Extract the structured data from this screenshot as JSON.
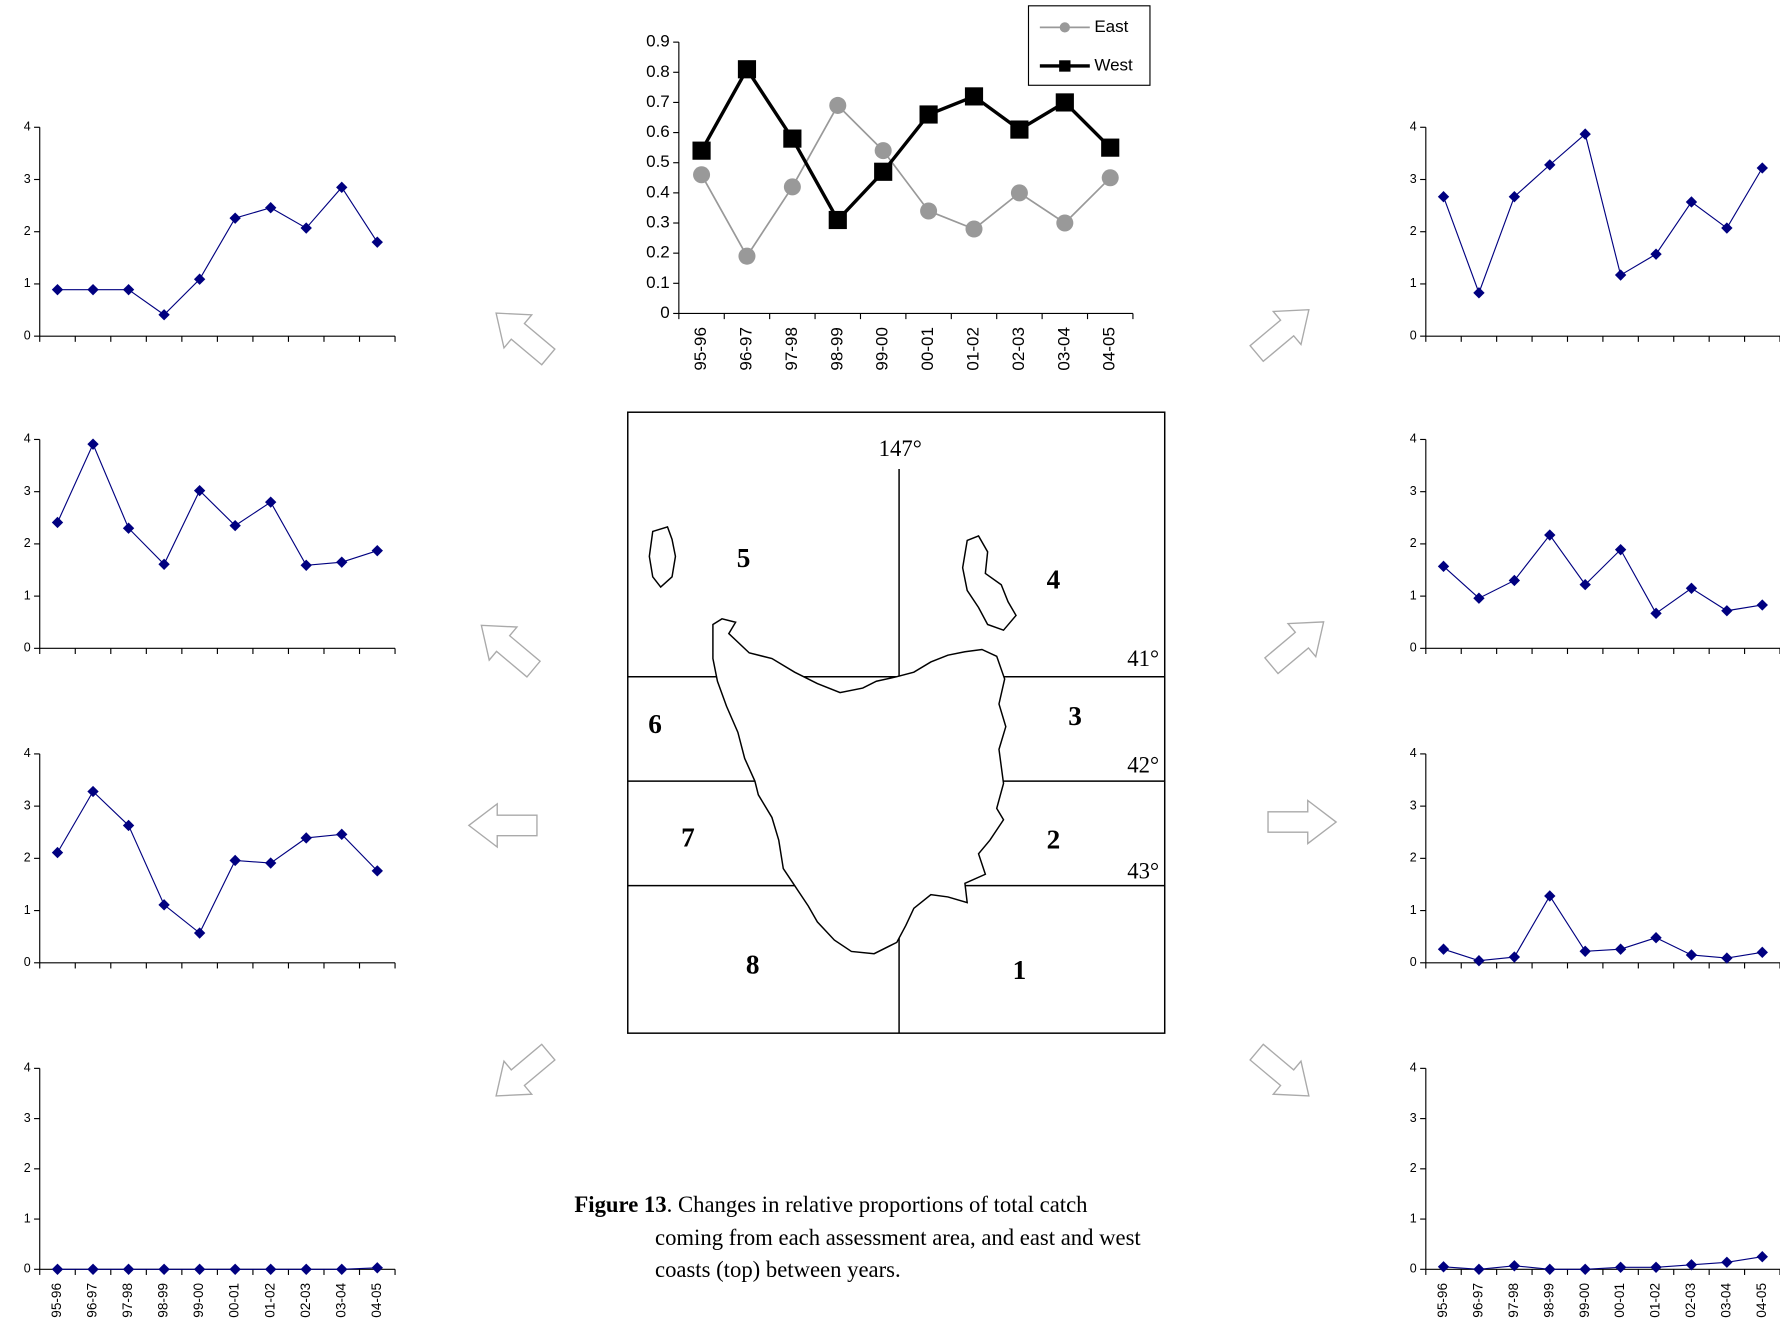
{
  "chart_data": [
    {
      "type": "line",
      "categories": [
        "95-96",
        "96-97",
        "97-98",
        "98-99",
        "99-00",
        "00-01",
        "01-02",
        "02-03",
        "03-04",
        "04-05"
      ],
      "series": [
        {
          "name": "East",
          "color": "#999999",
          "marker": "circle",
          "values": [
            0.46,
            0.19,
            0.42,
            0.69,
            0.54,
            0.34,
            0.28,
            0.4,
            0.3,
            0.45
          ]
        },
        {
          "name": "West",
          "color": "#000000",
          "marker": "square",
          "values": [
            0.54,
            0.81,
            0.58,
            0.31,
            0.47,
            0.66,
            0.72,
            0.61,
            0.7,
            0.55
          ]
        }
      ],
      "ylim": [
        0,
        0.9
      ],
      "yticks": [
        0,
        0.1,
        0.2,
        0.3,
        0.4,
        0.5,
        0.6,
        0.7,
        0.8,
        0.9
      ],
      "legend": "top-right"
    },
    {
      "type": "line",
      "color": "#000080",
      "marker": "diamond",
      "values": [
        0.89,
        0.89,
        0.89,
        0.41,
        1.09,
        2.26,
        2.46,
        2.07,
        2.85,
        1.8
      ],
      "ylim": [
        0,
        4
      ],
      "yticks": [
        0,
        1,
        2,
        3,
        4
      ]
    },
    {
      "type": "line",
      "color": "#000080",
      "marker": "diamond",
      "values": [
        2.41,
        3.91,
        2.3,
        1.61,
        3.02,
        2.35,
        2.8,
        1.59,
        1.65,
        1.87
      ],
      "ylim": [
        0,
        4
      ],
      "yticks": [
        0,
        1,
        2,
        3,
        4
      ]
    },
    {
      "type": "line",
      "color": "#000080",
      "marker": "diamond",
      "values": [
        2.11,
        3.28,
        2.63,
        1.11,
        0.57,
        1.96,
        1.91,
        2.39,
        2.46,
        1.76
      ],
      "ylim": [
        0,
        4
      ],
      "yticks": [
        0,
        1,
        2,
        3,
        4
      ]
    },
    {
      "type": "line",
      "color": "#000080",
      "marker": "diamond",
      "categories": [
        "95-96",
        "96-97",
        "97-98",
        "98-99",
        "99-00",
        "00-01",
        "01-02",
        "02-03",
        "03-04",
        "04-05"
      ],
      "values": [
        0,
        0,
        0,
        0,
        0,
        0,
        0,
        0,
        0,
        0.03
      ],
      "ylim": [
        0,
        4
      ],
      "yticks": [
        0,
        1,
        2,
        3,
        4
      ]
    },
    {
      "type": "line",
      "color": "#000080",
      "marker": "diamond",
      "values": [
        2.67,
        0.83,
        2.67,
        3.28,
        3.87,
        1.17,
        1.57,
        2.57,
        2.07,
        3.22
      ],
      "ylim": [
        0,
        4
      ],
      "yticks": [
        0,
        1,
        2,
        3,
        4
      ]
    },
    {
      "type": "line",
      "color": "#000080",
      "marker": "diamond",
      "values": [
        1.57,
        0.96,
        1.3,
        2.17,
        1.22,
        1.89,
        0.67,
        1.15,
        0.72,
        0.83
      ],
      "ylim": [
        0,
        4
      ],
      "yticks": [
        0,
        1,
        2,
        3,
        4
      ]
    },
    {
      "type": "line",
      "color": "#000080",
      "marker": "diamond",
      "values": [
        0.26,
        0.04,
        0.11,
        1.28,
        0.22,
        0.26,
        0.48,
        0.15,
        0.09,
        0.2
      ],
      "ylim": [
        0,
        4
      ],
      "yticks": [
        0,
        1,
        2,
        3,
        4
      ]
    },
    {
      "type": "line",
      "color": "#000080",
      "marker": "diamond",
      "categories": [
        "95-96",
        "96-97",
        "97-98",
        "98-99",
        "99-00",
        "00-01",
        "01-02",
        "02-03",
        "03-04",
        "04-05"
      ],
      "values": [
        0.05,
        0,
        0.07,
        0,
        0,
        0.04,
        0.04,
        0.09,
        0.14,
        0.25
      ],
      "ylim": [
        0,
        4
      ],
      "yticks": [
        0,
        1,
        2,
        3,
        4
      ]
    }
  ],
  "map": {
    "meridian": "147°",
    "parallels": [
      "41°",
      "42°",
      "43°"
    ],
    "areas": [
      "1",
      "2",
      "3",
      "4",
      "5",
      "6",
      "7",
      "8"
    ]
  },
  "caption": {
    "label": "Figure 13",
    "lines": [
      ". Changes in relative proportions of total catch",
      "coming from each assessment area, and east and west",
      "coasts (top) between years."
    ]
  }
}
